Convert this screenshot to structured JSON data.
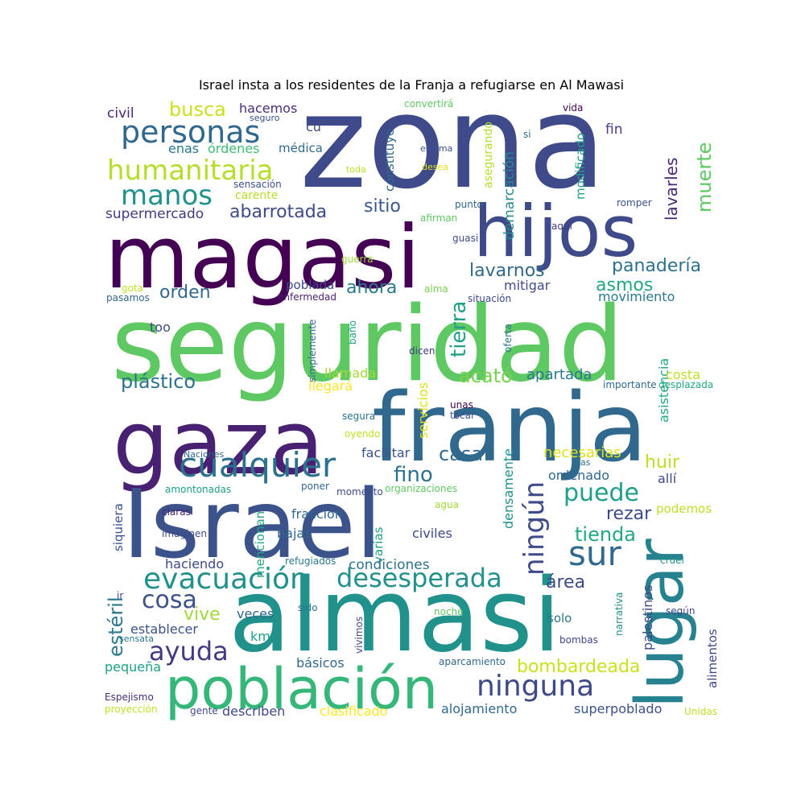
{
  "title": "Israel insta a los residentes de la Franja a refugiarse en Al Mawasi",
  "words": [
    {
      "text": "zona",
      "color": "#3e4a89"
    },
    {
      "text": "magasi",
      "color": "#440154"
    },
    {
      "text": "hijos",
      "color": "#3e4a89"
    },
    {
      "text": "seguridad",
      "color": "#5ec962"
    },
    {
      "text": "gaza",
      "color": "#482173"
    },
    {
      "text": "franja",
      "color": "#31688e"
    },
    {
      "text": "Israel",
      "color": "#3b528b"
    },
    {
      "text": "almasi",
      "color": "#21918c"
    },
    {
      "text": "lugar",
      "color": "#26828e"
    },
    {
      "text": "población",
      "color": "#35b779"
    },
    {
      "text": "cualquier",
      "color": "#2c728e"
    },
    {
      "text": "personas",
      "color": "#31688e"
    },
    {
      "text": "humanitaria",
      "color": "#b5de2b"
    },
    {
      "text": "manos",
      "color": "#21918c"
    },
    {
      "text": "busca",
      "color": "#cae11f"
    },
    {
      "text": "civil",
      "color": "#482677"
    },
    {
      "text": "hacemos",
      "color": "#472c7a"
    },
    {
      "text": "seguro",
      "color": "#3b528b"
    },
    {
      "text": "cu",
      "color": "#3e4989"
    },
    {
      "text": "enas",
      "color": "#2a788e"
    },
    {
      "text": "órdenes",
      "color": "#3dbc74"
    },
    {
      "text": "médica",
      "color": "#31688e"
    },
    {
      "text": "carente",
      "color": "#b5de2b"
    },
    {
      "text": "sensación",
      "color": "#3b528b"
    },
    {
      "text": "supermercado",
      "color": "#443983"
    },
    {
      "text": "abarrotada",
      "color": "#3e4a89"
    },
    {
      "text": "sitio",
      "color": "#38598c"
    },
    {
      "text": "constituye",
      "color": "#31688e"
    },
    {
      "text": "convertirá",
      "color": "#5ec962"
    },
    {
      "text": "encima",
      "color": "#3b528b"
    },
    {
      "text": "toda",
      "color": "#bddf26"
    },
    {
      "text": "desea",
      "color": "#dde318"
    },
    {
      "text": "asegurando",
      "color": "#b5de2b"
    },
    {
      "text": "demarcación",
      "color": "#238a8d"
    },
    {
      "text": "modificado",
      "color": "#1f9e89"
    },
    {
      "text": "si",
      "color": "#2c728e"
    },
    {
      "text": "vida",
      "color": "#440154"
    },
    {
      "text": "fin",
      "color": "#433e85"
    },
    {
      "text": "lavarles",
      "color": "#482878"
    },
    {
      "text": "muerte",
      "color": "#5ec962"
    },
    {
      "text": "punto",
      "color": "#31688e"
    },
    {
      "text": "romper",
      "color": "#3b528b"
    },
    {
      "text": "afirman",
      "color": "#5ec962"
    },
    {
      "text": "aquí",
      "color": "#433e85"
    },
    {
      "text": "guasi",
      "color": "#3e4a89"
    },
    {
      "text": "guerra",
      "color": "#a0da39"
    },
    {
      "text": "lavarnos",
      "color": "#31688e"
    },
    {
      "text": "panadería",
      "color": "#2c728e"
    },
    {
      "text": "asmos",
      "color": "#22a884"
    },
    {
      "text": "mitigar",
      "color": "#3e4a89"
    },
    {
      "text": "movimiento",
      "color": "#2a788e"
    },
    {
      "text": "orden",
      "color": "#31688e"
    },
    {
      "text": "poblada",
      "color": "#3e4989"
    },
    {
      "text": "ahora",
      "color": "#2a788e"
    },
    {
      "text": "alma",
      "color": "#7ad151"
    },
    {
      "text": "situación",
      "color": "#3e4a89"
    },
    {
      "text": "gota",
      "color": "#c2df23"
    },
    {
      "text": "pasamos",
      "color": "#31688e"
    },
    {
      "text": "enfermedad",
      "color": "#481f70"
    },
    {
      "text": "tierra",
      "color": "#1fa187"
    },
    {
      "text": "too",
      "color": "#3e4989"
    },
    {
      "text": "simplemente",
      "color": "#31688e"
    },
    {
      "text": "baño",
      "color": "#1f9e89"
    },
    {
      "text": "dicen",
      "color": "#443983"
    },
    {
      "text": "oferta",
      "color": "#2a788e"
    },
    {
      "text": "asistencia",
      "color": "#22a884"
    },
    {
      "text": "costa",
      "color": "#bddf26"
    },
    {
      "text": "importante",
      "color": "#31688e"
    },
    {
      "text": "desplazada",
      "color": "#22a884"
    },
    {
      "text": "plástico",
      "color": "#2c728e"
    },
    {
      "text": "llamada",
      "color": "#a5db36"
    },
    {
      "text": "llegará",
      "color": "#fde725"
    },
    {
      "text": "acató",
      "color": "#7ad151"
    },
    {
      "text": "apartada",
      "color": "#2a788e"
    },
    {
      "text": "servicios",
      "color": "#dde318"
    },
    {
      "text": "unas",
      "color": "#440154"
    },
    {
      "text": "tocar",
      "color": "#3b528b"
    },
    {
      "text": "segura",
      "color": "#2c728e"
    },
    {
      "text": "oyendo",
      "color": "#bddf26"
    },
    {
      "text": "Naciones",
      "color": "#31688e"
    },
    {
      "text": "facilitar",
      "color": "#3b528b"
    },
    {
      "text": "casa",
      "color": "#31688e"
    },
    {
      "text": "necesarias",
      "color": "#dde318"
    },
    {
      "text": "gías",
      "color": "#2c728e"
    },
    {
      "text": "huir",
      "color": "#bddf26"
    },
    {
      "text": "fino",
      "color": "#2c728e"
    },
    {
      "text": "ningún",
      "color": "#3e4a89"
    },
    {
      "text": "densamente",
      "color": "#21918c"
    },
    {
      "text": "ordenado",
      "color": "#31688e"
    },
    {
      "text": "allí",
      "color": "#3e4989"
    },
    {
      "text": "siquiera",
      "color": "#3b528b"
    },
    {
      "text": "amontonadas",
      "color": "#1f9e89"
    },
    {
      "text": "poner",
      "color": "#31688e"
    },
    {
      "text": "momento",
      "color": "#3e4989"
    },
    {
      "text": "organizaciones",
      "color": "#5ec962"
    },
    {
      "text": "puede",
      "color": "#1f9e89"
    },
    {
      "text": "rezar",
      "color": "#3e4a89"
    },
    {
      "text": "podemos",
      "color": "#bddf26"
    },
    {
      "text": "agua",
      "color": "#a0da39"
    },
    {
      "text": "claras",
      "color": "#481f70"
    },
    {
      "text": "fracción",
      "color": "#31688e"
    },
    {
      "text": "imaginen",
      "color": "#3e4a89"
    },
    {
      "text": "bajas",
      "color": "#31688e"
    },
    {
      "text": "civiles",
      "color": "#3e4989"
    },
    {
      "text": "mencionan",
      "color": "#22a884"
    },
    {
      "text": "varias",
      "color": "#1fa187"
    },
    {
      "text": "tienda",
      "color": "#22a884"
    },
    {
      "text": "sur",
      "color": "#31688e"
    },
    {
      "text": "haciendo",
      "color": "#3e4989"
    },
    {
      "text": "condiciones",
      "color": "#2c728e"
    },
    {
      "text": "refugiados",
      "color": "#2a788e"
    },
    {
      "text": "evacuación",
      "color": "#21918c"
    },
    {
      "text": "desesperada",
      "color": "#21918c"
    },
    {
      "text": "cruel",
      "color": "#21918c"
    },
    {
      "text": "área",
      "color": "#3e4989"
    },
    {
      "text": "palestinos",
      "color": "#3e4989"
    },
    {
      "text": "estéril",
      "color": "#2a788e"
    },
    {
      "text": "ir",
      "color": "#3e4989"
    },
    {
      "text": "cosa",
      "color": "#3b528b"
    },
    {
      "text": "sido",
      "color": "#2c728e"
    },
    {
      "text": "vive",
      "color": "#a0da39"
    },
    {
      "text": "veces",
      "color": "#31688e"
    },
    {
      "text": "noche",
      "color": "#5ec962"
    },
    {
      "text": "solo",
      "color": "#2a788e"
    },
    {
      "text": "narrativa",
      "color": "#21918c"
    },
    {
      "text": "según",
      "color": "#3e4989"
    },
    {
      "text": "establecer",
      "color": "#3b528b"
    },
    {
      "text": "sensata",
      "color": "#2a788e"
    },
    {
      "text": "km",
      "color": "#1fa187"
    },
    {
      "text": "vivimos",
      "color": "#3e4989"
    },
    {
      "text": "bombas",
      "color": "#3e4989"
    },
    {
      "text": "alimentos",
      "color": "#3e4989"
    },
    {
      "text": "ayuda",
      "color": "#443983"
    },
    {
      "text": "pequeña",
      "color": "#1f9e89"
    },
    {
      "text": "básicos",
      "color": "#31688e"
    },
    {
      "text": "aparcamiento",
      "color": "#31688e"
    },
    {
      "text": "bombardeada",
      "color": "#cae11f"
    },
    {
      "text": "ninguna",
      "color": "#3e4989"
    },
    {
      "text": "Espejismo",
      "color": "#472c7a"
    },
    {
      "text": "proyección",
      "color": "#c2df23"
    },
    {
      "text": "gente",
      "color": "#3e4989"
    },
    {
      "text": "describen",
      "color": "#3e4a89"
    },
    {
      "text": "clasificado",
      "color": "#fde725"
    },
    {
      "text": "alojamiento",
      "color": "#31688e"
    },
    {
      "text": "superpoblado",
      "color": "#3b528b"
    },
    {
      "text": "Unidas",
      "color": "#bddf26"
    }
  ]
}
